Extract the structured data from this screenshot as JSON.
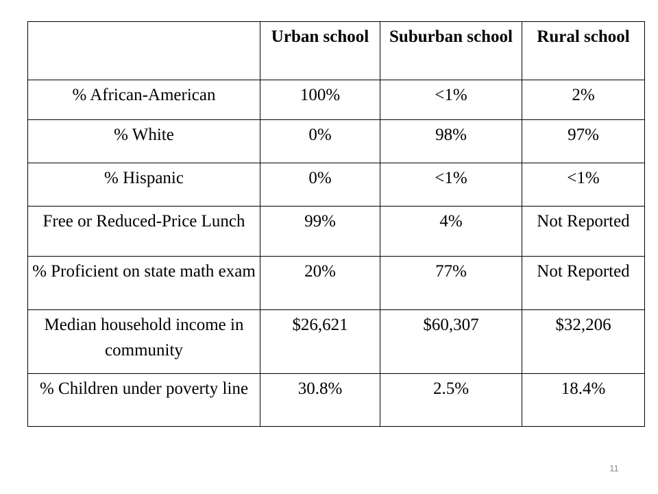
{
  "table": {
    "headers": [
      "",
      "Urban school",
      "Suburban school",
      "Rural school"
    ],
    "rows": [
      {
        "label": "% African-American",
        "urban": "100%",
        "suburban": "<1%",
        "rural": "2%"
      },
      {
        "label": "% White",
        "urban": "0%",
        "suburban": "98%",
        "rural": "97%"
      },
      {
        "label": "% Hispanic",
        "urban": "0%",
        "suburban": "<1%",
        "rural": "<1%"
      },
      {
        "label": "Free or Reduced-Price Lunch",
        "urban": "99%",
        "suburban": "4%",
        "rural": "Not Reported"
      },
      {
        "label": "% Proficient on state math exam",
        "urban": "20%",
        "suburban": "77%",
        "rural": "Not Reported"
      },
      {
        "label": "Median household income in community",
        "urban": "$26,621",
        "suburban": "$60,307",
        "rural": "$32,206"
      },
      {
        "label": "% Children under poverty line",
        "urban": "30.8%",
        "suburban": "2.5%",
        "rural": "18.4%"
      }
    ]
  },
  "page_number": "11"
}
